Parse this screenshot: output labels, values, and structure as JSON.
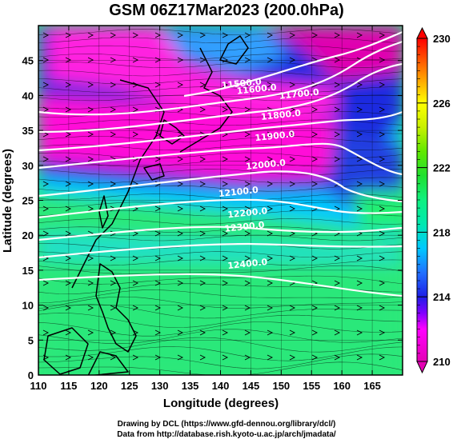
{
  "title": "GSM 06Z17Mar2023 (200.0hPa)",
  "xaxis": {
    "label": "Longitude (degrees)",
    "range": [
      110,
      170
    ],
    "ticks": [
      110,
      115,
      120,
      125,
      130,
      135,
      140,
      145,
      150,
      155,
      160,
      165
    ],
    "tick_labels": [
      "110",
      "115",
      "120",
      "125",
      "130",
      "135",
      "140",
      "145",
      "150",
      "155",
      "160",
      "165"
    ]
  },
  "yaxis": {
    "label": "Latitude (degrees)",
    "range": [
      0,
      50
    ],
    "ticks": [
      0,
      5,
      10,
      15,
      20,
      25,
      30,
      35,
      40,
      45
    ],
    "tick_labels": [
      "0",
      "5",
      "10",
      "15",
      "20",
      "25",
      "30",
      "35",
      "40",
      "45"
    ]
  },
  "colorbar": {
    "range": [
      210,
      230
    ],
    "labels": [
      "230",
      "226",
      "222",
      "218",
      "214",
      "210"
    ],
    "label_values": [
      230,
      226,
      222,
      218,
      214,
      210
    ],
    "stops": [
      {
        "v": 210,
        "c": "#e400b4"
      },
      {
        "v": 212,
        "c": "#ff00ff"
      },
      {
        "v": 213,
        "c": "#8000ff"
      },
      {
        "v": 214,
        "c": "#1e1ee6"
      },
      {
        "v": 215.5,
        "c": "#2070ff"
      },
      {
        "v": 217,
        "c": "#00c8ff"
      },
      {
        "v": 218.5,
        "c": "#00e8b0"
      },
      {
        "v": 220,
        "c": "#10f080"
      },
      {
        "v": 221.5,
        "c": "#20e030"
      },
      {
        "v": 223,
        "c": "#60e800"
      },
      {
        "v": 224.5,
        "c": "#c8f000"
      },
      {
        "v": 226,
        "c": "#ffff00"
      },
      {
        "v": 227.5,
        "c": "#ffa000"
      },
      {
        "v": 229,
        "c": "#ff4000"
      },
      {
        "v": 230,
        "c": "#ff0000"
      }
    ]
  },
  "contours": {
    "color": "#ffffff",
    "labels": [
      {
        "text": "11500.0",
        "lon": 143.5,
        "lat": 41.3
      },
      {
        "text": "11600.0",
        "lon": 146.0,
        "lat": 40.5
      },
      {
        "text": "11700.0",
        "lon": 153.0,
        "lat": 39.8
      },
      {
        "text": "11800.0",
        "lon": 150.0,
        "lat": 36.8
      },
      {
        "text": "11900.0",
        "lon": 149.0,
        "lat": 33.8
      },
      {
        "text": "12000.0",
        "lon": 147.5,
        "lat": 29.7
      },
      {
        "text": "12100.0",
        "lon": 143.0,
        "lat": 25.8
      },
      {
        "text": "12200.0",
        "lon": 144.5,
        "lat": 22.8
      },
      {
        "text": "12300.0",
        "lon": 144.0,
        "lat": 20.8
      },
      {
        "text": "12400.0",
        "lon": 144.5,
        "lat": 15.5
      }
    ]
  },
  "credits": {
    "line1": "Drawing by DCL (https://www.gfd-dennou.org/library/dcl/)",
    "line2": "Data from http://database.rish.kyoto-u.ac.jp/arch/jmadata/"
  }
}
